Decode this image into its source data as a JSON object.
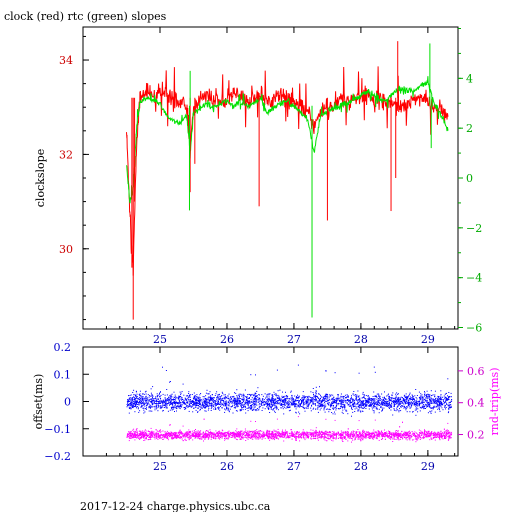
{
  "page": {
    "title": "clock (red) rtc (green) slopes",
    "footer": "2017-12-24 charge.physics.ubc.ca"
  },
  "colors": {
    "red": "#ff0000",
    "green": "#00e000",
    "blue": "#0000ff",
    "magenta": "#ff00ff",
    "axis": "#000000"
  },
  "chart_data": [
    {
      "type": "line",
      "title": "clock (red) rtc (green) slopes",
      "xlabel": "",
      "ylabel": "clockslope",
      "y2label": "",
      "xlim": [
        23.85,
        29.45
      ],
      "ylim": [
        28.3,
        34.7
      ],
      "y2lim": [
        -6.06,
        6.06
      ],
      "xticks": [
        25,
        26,
        27,
        28,
        29
      ],
      "yticks": [
        30,
        32,
        34
      ],
      "y2ticks": [
        -6,
        -4,
        -2,
        0,
        2,
        4
      ],
      "series": [
        {
          "name": "clock",
          "axis": "left",
          "color": "#ff0000",
          "x": [
            24.5,
            24.55,
            24.6,
            24.65,
            24.7,
            24.8,
            24.9,
            25.0,
            25.1,
            25.2,
            25.3,
            25.4,
            25.45,
            25.5,
            25.6,
            25.7,
            25.8,
            25.9,
            26.0,
            26.1,
            26.2,
            26.3,
            26.4,
            26.5,
            26.6,
            26.7,
            26.8,
            26.9,
            27.0,
            27.1,
            27.2,
            27.3,
            27.4,
            27.5,
            27.6,
            27.7,
            27.8,
            27.9,
            28.0,
            28.1,
            28.2,
            28.3,
            28.4,
            28.5,
            28.6,
            28.7,
            28.8,
            28.9,
            29.0,
            29.1,
            29.2,
            29.3
          ],
          "y": [
            32.5,
            30.8,
            29.6,
            32.2,
            33.2,
            33.4,
            33.2,
            33.3,
            33.3,
            33.2,
            33.1,
            33.0,
            32.2,
            32.9,
            33.2,
            33.3,
            33.1,
            33.2,
            33.2,
            33.3,
            33.2,
            33.1,
            33.2,
            33.3,
            33.1,
            33.2,
            33.3,
            33.2,
            33.1,
            33.0,
            32.9,
            32.6,
            32.9,
            33.0,
            33.0,
            33.2,
            33.1,
            33.2,
            33.2,
            33.3,
            33.1,
            33.2,
            33.1,
            33.1,
            33.0,
            33.1,
            33.2,
            33.2,
            33.1,
            33.0,
            32.9,
            32.8
          ]
        },
        {
          "name": "rtc",
          "axis": "right",
          "color": "#00e000",
          "x": [
            24.5,
            24.55,
            24.6,
            24.65,
            24.7,
            24.8,
            24.9,
            25.0,
            25.1,
            25.2,
            25.3,
            25.4,
            25.45,
            25.5,
            25.6,
            25.7,
            25.8,
            25.9,
            26.0,
            26.1,
            26.2,
            26.3,
            26.4,
            26.5,
            26.6,
            26.7,
            26.8,
            26.9,
            27.0,
            27.1,
            27.2,
            27.3,
            27.4,
            27.5,
            27.6,
            27.7,
            27.8,
            27.9,
            28.0,
            28.1,
            28.2,
            28.3,
            28.4,
            28.5,
            28.6,
            28.7,
            28.8,
            28.9,
            29.0,
            29.1,
            29.2,
            29.3
          ],
          "y": [
            0.5,
            -1.0,
            -0.5,
            2.0,
            3.0,
            3.2,
            3.1,
            3.0,
            2.5,
            2.3,
            2.2,
            2.5,
            1.0,
            2.6,
            2.8,
            3.0,
            2.8,
            3.0,
            3.1,
            2.9,
            3.0,
            2.9,
            3.0,
            3.2,
            2.6,
            2.8,
            3.0,
            3.1,
            2.9,
            2.6,
            2.4,
            1.0,
            2.5,
            2.7,
            2.8,
            2.9,
            3.0,
            3.2,
            3.3,
            3.5,
            3.3,
            3.1,
            3.2,
            3.4,
            3.6,
            3.5,
            3.5,
            3.7,
            3.8,
            3.0,
            2.5,
            1.9
          ]
        }
      ]
    },
    {
      "type": "scatter",
      "xlabel": "",
      "ylabel": "offset(ms)",
      "y2label": "rnd-trip(ms)",
      "xlim": [
        23.85,
        29.45
      ],
      "ylim": [
        -0.2,
        0.2
      ],
      "y2lim": [
        0.065,
        0.75
      ],
      "xticks": [
        25,
        26,
        27,
        28,
        29
      ],
      "yticks": [
        -0.2,
        -0.1,
        0,
        0.1,
        0.2
      ],
      "ytick_labels": [
        "−0.2",
        "−0.1",
        "0",
        "0.1",
        "0.2"
      ],
      "y2ticks": [
        0.2,
        0.4,
        0.6
      ],
      "series": [
        {
          "name": "offset",
          "axis": "left",
          "color": "#0000ff",
          "x_range": [
            24.5,
            29.35
          ],
          "center": 0.0,
          "spread": 0.035
        },
        {
          "name": "rnd-trip",
          "axis": "right",
          "color": "#ff00ff",
          "x_range": [
            24.5,
            29.35
          ],
          "center": 0.2,
          "spread": 0.03
        }
      ]
    }
  ]
}
